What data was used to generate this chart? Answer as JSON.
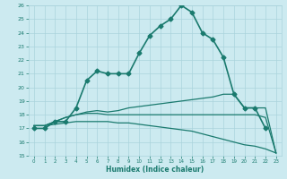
{
  "title": "",
  "xlabel": "Humidex (Indice chaleur)",
  "ylabel": "",
  "bg_color": "#cceaf0",
  "grid_color": "#aad4dc",
  "line_color": "#1a7a6e",
  "xlim": [
    -0.5,
    23.5
  ],
  "ylim": [
    15,
    26
  ],
  "xticks": [
    0,
    1,
    2,
    3,
    4,
    5,
    6,
    7,
    8,
    9,
    10,
    11,
    12,
    13,
    14,
    15,
    16,
    17,
    18,
    19,
    20,
    21,
    22,
    23
  ],
  "yticks": [
    15,
    16,
    17,
    18,
    19,
    20,
    21,
    22,
    23,
    24,
    25,
    26
  ],
  "series": [
    {
      "x": [
        0,
        1,
        2,
        3,
        4,
        5,
        6,
        7,
        8,
        9,
        10,
        11,
        12,
        13,
        14,
        15,
        16,
        17,
        18,
        19,
        20,
        21,
        22
      ],
      "y": [
        17.0,
        17.0,
        17.5,
        17.5,
        18.5,
        20.5,
        21.2,
        21.0,
        21.0,
        21.0,
        22.5,
        23.8,
        24.5,
        25.0,
        26.0,
        25.5,
        24.0,
        23.5,
        22.2,
        19.5,
        18.5,
        18.5,
        17.0
      ],
      "marker": "D",
      "markersize": 2.5,
      "linewidth": 1.2
    },
    {
      "x": [
        0,
        1,
        2,
        3,
        4,
        5,
        6,
        7,
        8,
        9,
        10,
        11,
        12,
        13,
        14,
        15,
        16,
        17,
        18,
        19,
        20,
        21,
        22,
        23
      ],
      "y": [
        17.2,
        17.2,
        17.5,
        17.8,
        18.0,
        18.2,
        18.3,
        18.2,
        18.3,
        18.5,
        18.6,
        18.7,
        18.8,
        18.9,
        19.0,
        19.1,
        19.2,
        19.3,
        19.5,
        19.5,
        18.5,
        18.5,
        18.5,
        15.2
      ],
      "marker": null,
      "markersize": 0,
      "linewidth": 0.9
    },
    {
      "x": [
        0,
        1,
        2,
        3,
        4,
        5,
        6,
        7,
        8,
        9,
        10,
        11,
        12,
        13,
        14,
        15,
        16,
        17,
        18,
        19,
        20,
        21,
        22,
        23
      ],
      "y": [
        17.2,
        17.2,
        17.5,
        17.8,
        18.0,
        18.1,
        18.1,
        18.0,
        18.0,
        18.0,
        18.0,
        18.0,
        18.0,
        18.0,
        18.0,
        18.0,
        18.0,
        18.0,
        18.0,
        18.0,
        18.0,
        18.0,
        17.8,
        15.2
      ],
      "marker": null,
      "markersize": 0,
      "linewidth": 0.9
    },
    {
      "x": [
        0,
        1,
        2,
        3,
        4,
        5,
        6,
        7,
        8,
        9,
        10,
        11,
        12,
        13,
        14,
        15,
        16,
        17,
        18,
        19,
        20,
        21,
        22,
        23
      ],
      "y": [
        17.2,
        17.2,
        17.3,
        17.4,
        17.5,
        17.5,
        17.5,
        17.5,
        17.4,
        17.4,
        17.3,
        17.2,
        17.1,
        17.0,
        16.9,
        16.8,
        16.6,
        16.4,
        16.2,
        16.0,
        15.8,
        15.7,
        15.5,
        15.2
      ],
      "marker": null,
      "markersize": 0,
      "linewidth": 0.9
    }
  ]
}
